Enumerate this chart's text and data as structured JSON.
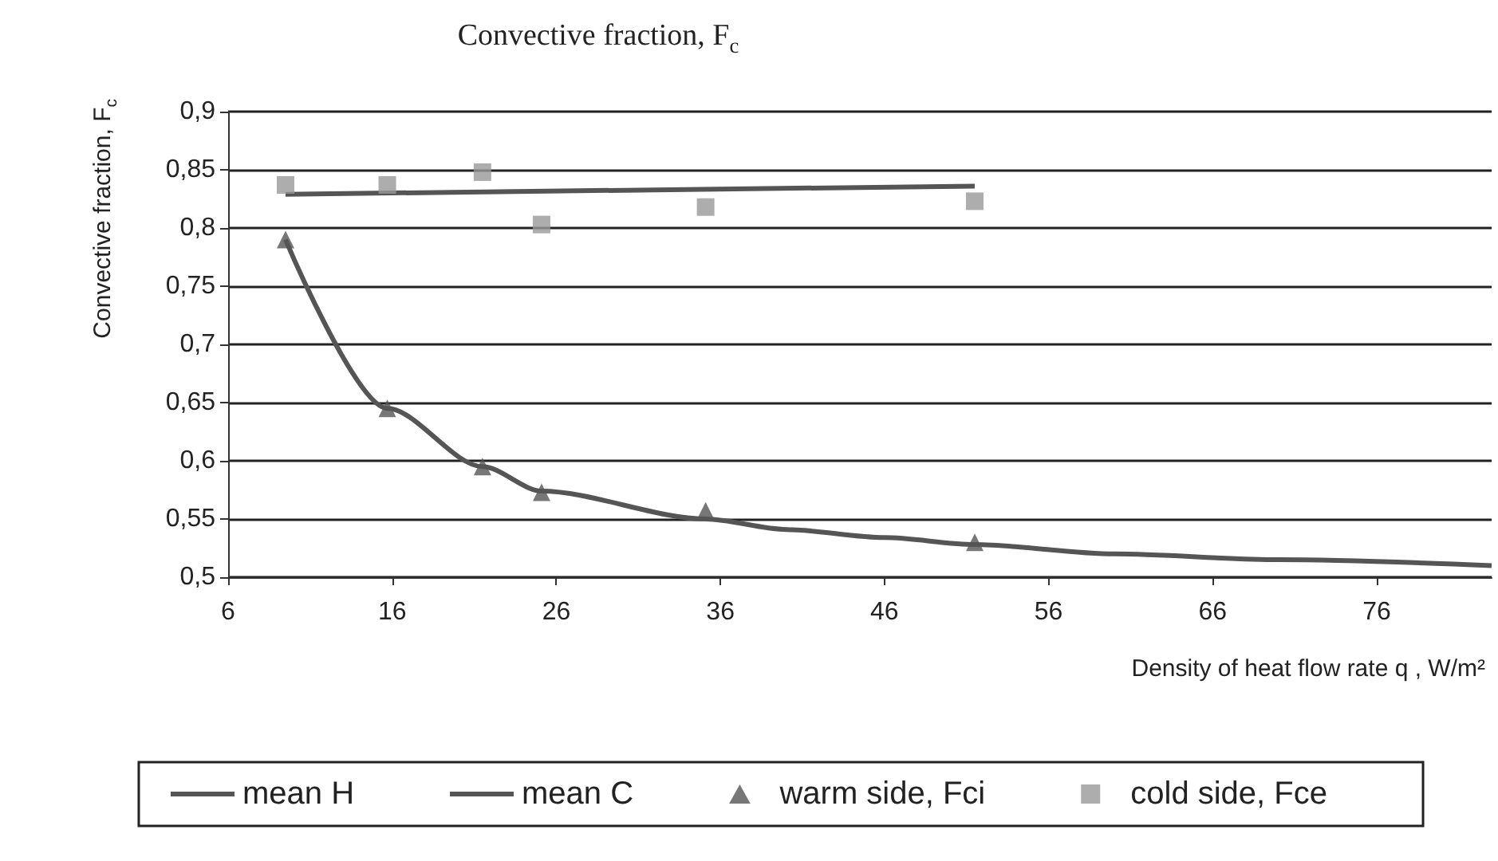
{
  "chart_data": {
    "type": "line",
    "title": "Convective fraction, F$_{c}$",
    "xlabel": "Density of heat flow rate q , W/m²",
    "ylabel": "Convective fraction, F$_{c}$",
    "xlim": [
      6,
      83
    ],
    "xticks": [
      6,
      16,
      26,
      36,
      46,
      56,
      66,
      76
    ],
    "ylim": [
      0.5,
      0.9
    ],
    "yticks": [
      {
        "value": 0.5,
        "label": "0,5"
      },
      {
        "value": 0.55,
        "label": "0,55"
      },
      {
        "value": 0.6,
        "label": "0,6"
      },
      {
        "value": 0.65,
        "label": "0,65"
      },
      {
        "value": 0.7,
        "label": "0,7"
      },
      {
        "value": 0.75,
        "label": "0,75"
      },
      {
        "value": 0.8,
        "label": "0,8"
      },
      {
        "value": 0.85,
        "label": "0,85"
      },
      {
        "value": 0.9,
        "label": "0,9"
      }
    ],
    "grid": "y",
    "legend": "bottom",
    "series": [
      {
        "name": "mean H",
        "marker": "none",
        "color": "#555555",
        "x": [
          9.5,
          15.7,
          21.5,
          25.1,
          35.1,
          40,
          46,
          51.5,
          60,
          70,
          83
        ],
        "values": [
          0.79,
          0.645,
          0.595,
          0.574,
          0.55,
          0.541,
          0.534,
          0.528,
          0.52,
          0.515,
          0.51
        ]
      },
      {
        "name": "mean C",
        "marker": "none",
        "color": "#555555",
        "x": [
          9.5,
          51.5
        ],
        "values": [
          0.829,
          0.836
        ]
      },
      {
        "name": "warm side, Fci",
        "type": "scatter",
        "marker": "triangle",
        "color": "#555555",
        "x": [
          9.5,
          15.7,
          21.5,
          25.1,
          35.1,
          51.5
        ],
        "values": [
          0.79,
          0.645,
          0.595,
          0.573,
          0.557,
          0.53
        ]
      },
      {
        "name": "cold side, Fce",
        "type": "scatter",
        "marker": "square",
        "color": "#999999",
        "x": [
          9.5,
          15.7,
          21.5,
          25.1,
          35.1,
          51.5
        ],
        "values": [
          0.837,
          0.837,
          0.848,
          0.803,
          0.818,
          0.823
        ]
      }
    ]
  }
}
